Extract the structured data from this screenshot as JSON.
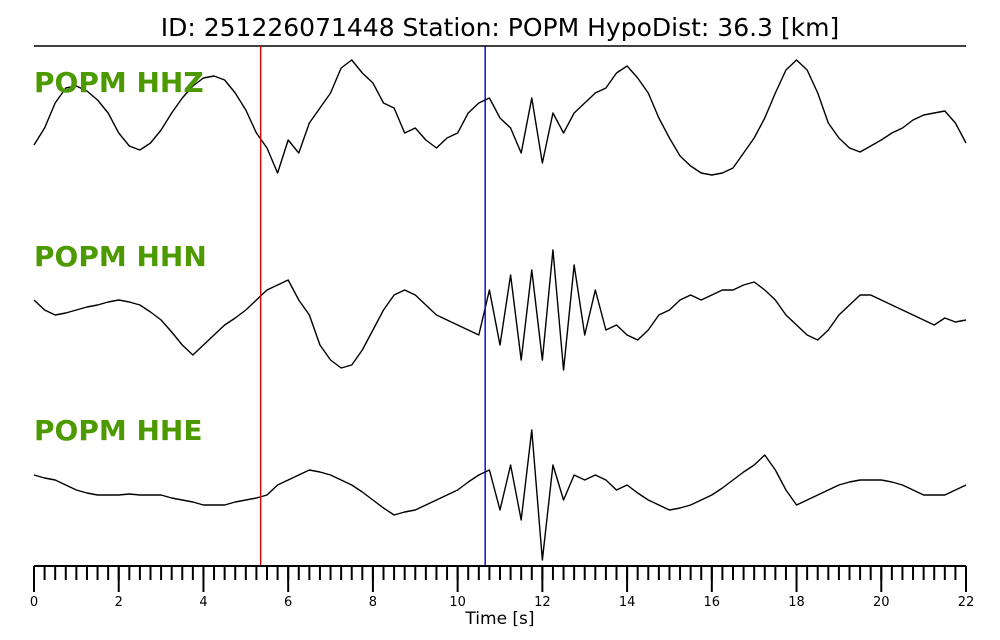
{
  "chart_data": {
    "type": "line",
    "title": "ID: 251226071448   Station: POPM   HypoDist:    36.3 [km]",
    "xlabel": "Time [s]",
    "xlim": [
      0,
      22
    ],
    "xticks": [
      0,
      2,
      4,
      6,
      8,
      10,
      12,
      14,
      16,
      18,
      20,
      22
    ],
    "xminor": 0.25,
    "label_color": "#4c9a00",
    "markers": [
      {
        "x": 5.35,
        "color": "#e00000"
      },
      {
        "x": 10.65,
        "color": "#0000c8"
      }
    ],
    "x": [
      0,
      0.25,
      0.5,
      0.75,
      1,
      1.25,
      1.5,
      1.75,
      2,
      2.25,
      2.5,
      2.75,
      3,
      3.25,
      3.5,
      3.75,
      4,
      4.25,
      4.5,
      4.75,
      5,
      5.25,
      5.5,
      5.75,
      6,
      6.25,
      6.5,
      6.75,
      7,
      7.25,
      7.5,
      7.75,
      8,
      8.25,
      8.5,
      8.75,
      9,
      9.25,
      9.5,
      9.75,
      10,
      10.25,
      10.5,
      10.75,
      11,
      11.25,
      11.5,
      11.75,
      12,
      12.25,
      12.5,
      12.75,
      13,
      13.25,
      13.5,
      13.75,
      14,
      14.25,
      14.5,
      14.75,
      15,
      15.25,
      15.5,
      15.75,
      16,
      16.25,
      16.5,
      16.75,
      17,
      17.25,
      17.5,
      17.75,
      18,
      18.25,
      18.5,
      18.75,
      19,
      19.25,
      19.5,
      19.75,
      20,
      20.25,
      20.5,
      20.75,
      21,
      21.25,
      21.5,
      21.75,
      22
    ],
    "series": [
      {
        "name": "POPM HHZ",
        "color": "#000000",
        "values": [
          -27,
          -10,
          15,
          30,
          32,
          27,
          18,
          5,
          -15,
          -28,
          -32,
          -25,
          -12,
          5,
          20,
          32,
          40,
          42,
          38,
          25,
          8,
          -15,
          -30,
          -55,
          -22,
          -35,
          -5,
          10,
          25,
          50,
          58,
          45,
          35,
          15,
          10,
          -15,
          -10,
          -22,
          -30,
          -20,
          -15,
          5,
          15,
          20,
          0,
          -10,
          -35,
          20,
          -45,
          5,
          -15,
          5,
          15,
          25,
          30,
          45,
          52,
          40,
          25,
          0,
          -20,
          -38,
          -48,
          -55,
          -57,
          -55,
          -50,
          -35,
          -20,
          0,
          25,
          48,
          58,
          48,
          25,
          -5,
          -20,
          -30,
          -34,
          -28,
          -22,
          -15,
          -10,
          -2,
          3,
          5,
          7,
          -5,
          -25
        ]
      },
      {
        "name": "POPM HHN",
        "color": "#000000",
        "values": [
          10,
          0,
          -5,
          -3,
          0,
          3,
          5,
          8,
          10,
          8,
          5,
          -2,
          -10,
          -22,
          -35,
          -45,
          -35,
          -25,
          -15,
          -8,
          0,
          10,
          20,
          25,
          30,
          10,
          -5,
          -35,
          -50,
          -58,
          -55,
          -40,
          -20,
          0,
          15,
          20,
          15,
          5,
          -5,
          -10,
          -15,
          -20,
          -25,
          20,
          -35,
          35,
          -50,
          40,
          -50,
          60,
          -60,
          45,
          -25,
          20,
          -20,
          -15,
          -25,
          -30,
          -20,
          -5,
          0,
          10,
          15,
          10,
          15,
          20,
          20,
          25,
          28,
          20,
          10,
          -5,
          -15,
          -25,
          -30,
          -20,
          -5,
          5,
          15,
          15,
          10,
          5,
          0,
          -5,
          -10,
          -15,
          -8,
          -12,
          -10
        ]
      },
      {
        "name": "POPM HHE",
        "color": "#000000",
        "values": [
          15,
          12,
          10,
          5,
          0,
          -3,
          -5,
          -5,
          -5,
          -4,
          -5,
          -5,
          -5,
          -8,
          -10,
          -12,
          -15,
          -15,
          -15,
          -12,
          -10,
          -8,
          -5,
          5,
          10,
          15,
          20,
          18,
          15,
          10,
          5,
          -2,
          -10,
          -18,
          -25,
          -22,
          -20,
          -15,
          -10,
          -5,
          0,
          8,
          15,
          20,
          -20,
          25,
          -30,
          60,
          -70,
          25,
          -10,
          15,
          10,
          15,
          10,
          0,
          5,
          -3,
          -10,
          -15,
          -20,
          -18,
          -15,
          -10,
          -5,
          2,
          10,
          18,
          25,
          35,
          20,
          0,
          -15,
          -10,
          -5,
          0,
          5,
          8,
          10,
          10,
          10,
          8,
          5,
          0,
          -5,
          -5,
          -5,
          0,
          5
        ]
      }
    ]
  }
}
